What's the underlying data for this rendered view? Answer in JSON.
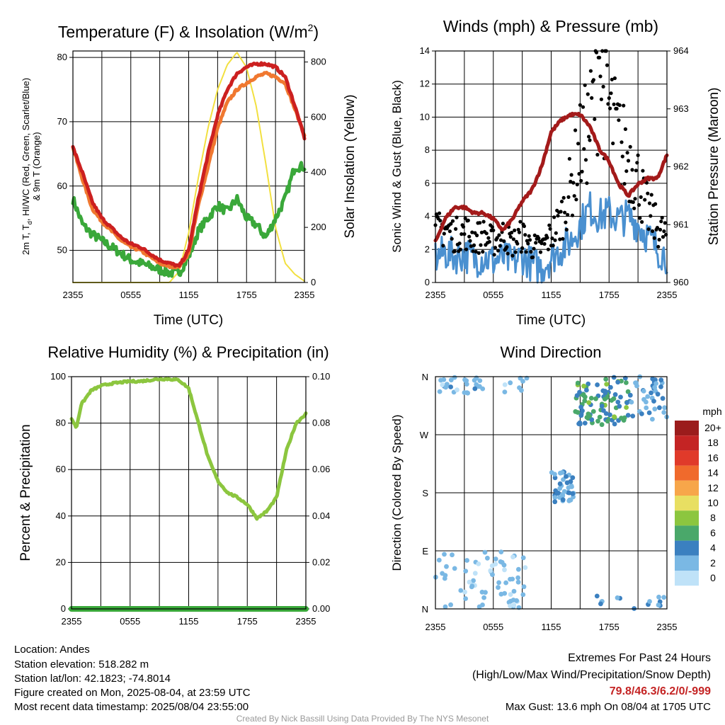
{
  "chart_data": [
    {
      "type": "line",
      "title_prefix": "Temperature (F) & Insolation (W/m",
      "title_sup": "2",
      "title_suffix": ")",
      "xlabel": "Time (UTC)",
      "ylabel_left_line1": "2m T, T",
      "ylabel_left_sub": "d",
      "ylabel_left_line1b": ", HI/WC (Red, Green, Scarlet/Blue)",
      "ylabel_left_line2": "& 9m T (Orange)",
      "ylabel_right": "Solar Insolation (Yellow)",
      "x_ticks": [
        "2355",
        "0555",
        "1155",
        "1755",
        "2355"
      ],
      "y_left_ticks": [
        "50",
        "60",
        "70",
        "80"
      ],
      "y_left_range": [
        45,
        81
      ],
      "y_right_ticks": [
        "0",
        "200",
        "400",
        "600",
        "800"
      ],
      "y_right_range": [
        0,
        840
      ],
      "x_range_hours": [
        0,
        24
      ],
      "series": [
        {
          "name": "2m T",
          "color": "#cc2020",
          "axis": "left",
          "x": [
            0,
            1,
            2,
            3,
            4,
            5,
            6,
            7,
            8,
            9,
            10,
            11,
            12,
            13,
            14,
            15,
            16,
            17,
            18,
            19,
            20,
            21,
            22,
            23,
            24
          ],
          "values": [
            66,
            62,
            57.5,
            55,
            53.5,
            52,
            51,
            50.5,
            49.5,
            48.5,
            48,
            47.5,
            50,
            58,
            65,
            71,
            75,
            77.5,
            78.5,
            79,
            79,
            78.5,
            77,
            72.5,
            67.5
          ]
        },
        {
          "name": "9m T",
          "color": "#f07830",
          "axis": "left",
          "x": [
            0,
            1,
            2,
            3,
            4,
            5,
            6,
            7,
            8,
            9,
            10,
            11,
            12,
            13,
            14,
            15,
            16,
            17,
            18,
            19,
            20,
            21,
            22,
            23,
            24
          ],
          "values": [
            66,
            61,
            56.5,
            54.5,
            53,
            51.5,
            50.5,
            50,
            49,
            48,
            47.5,
            47.5,
            49.5,
            57,
            63,
            69,
            73,
            75,
            76,
            77,
            77.5,
            77,
            76,
            72,
            68
          ]
        },
        {
          "name": "Td",
          "color": "#3aa83a",
          "axis": "left",
          "x": [
            0,
            1,
            2,
            3,
            4,
            5,
            6,
            7,
            8,
            9,
            10,
            11,
            12,
            13,
            14,
            15,
            16,
            17,
            18,
            19,
            20,
            21,
            22,
            23,
            24
          ],
          "values": [
            58,
            54,
            52.5,
            51.5,
            50.5,
            49.5,
            48.5,
            48,
            47.5,
            47,
            46.5,
            46.5,
            49,
            53,
            55,
            57,
            56,
            58,
            55,
            54,
            52,
            55,
            58,
            63,
            63
          ]
        },
        {
          "name": "Solar Insolation",
          "color": "#f2e040",
          "axis": "right",
          "x": [
            0,
            1,
            2,
            3,
            4,
            5,
            6,
            7,
            8,
            9,
            10,
            11,
            12,
            13,
            14,
            15,
            16,
            17,
            18,
            19,
            20,
            21,
            22,
            23,
            24
          ],
          "values": [
            0,
            0,
            0,
            0,
            0,
            0,
            0,
            0,
            0,
            0,
            0,
            40,
            180,
            380,
            560,
            700,
            790,
            835,
            780,
            640,
            430,
            200,
            70,
            30,
            5
          ]
        }
      ]
    },
    {
      "type": "line",
      "title": "Winds (mph) & Pressure (mb)",
      "xlabel": "Time (UTC)",
      "ylabel_left": "Sonic Wind & Gust (Blue, Black)",
      "ylabel_right": "Station Pressure (Maroon)",
      "x_ticks": [
        "2355",
        "0555",
        "1155",
        "1755",
        "2355"
      ],
      "y_left_ticks": [
        "0",
        "2",
        "4",
        "6",
        "8",
        "10",
        "12",
        "14"
      ],
      "y_left_range": [
        0,
        14
      ],
      "y_right_ticks": [
        "960",
        "961",
        "962",
        "963",
        "964"
      ],
      "y_right_range": [
        960,
        964
      ],
      "x_range_hours": [
        0,
        24
      ],
      "series": [
        {
          "name": "Sonic Wind",
          "color": "#4a90d0",
          "axis": "left",
          "x": [
            0,
            1,
            2,
            3,
            4,
            5,
            6,
            7,
            8,
            9,
            10,
            11,
            12,
            13,
            14,
            15,
            16,
            17,
            18,
            19,
            20,
            21,
            22,
            23,
            24
          ],
          "values": [
            1.5,
            1.8,
            1.6,
            1.7,
            1.4,
            1.5,
            1.3,
            1.5,
            1.2,
            1.6,
            1.1,
            0.9,
            1.5,
            2,
            2.5,
            3.5,
            4.5,
            4,
            4.2,
            3.8,
            4,
            3.5,
            2.8,
            2,
            1.6
          ]
        },
        {
          "name": "Gust",
          "color": "#000000",
          "axis": "left",
          "x": [
            0,
            1,
            2,
            3,
            4,
            5,
            6,
            7,
            8,
            9,
            10,
            11,
            12,
            13,
            14,
            15,
            16,
            17,
            18,
            19,
            20,
            21,
            22,
            23,
            24
          ],
          "values": [
            3.2,
            3.5,
            3,
            3.3,
            2.8,
            3,
            2.6,
            3,
            2.5,
            3,
            2.3,
            2.2,
            3,
            4,
            6,
            8.5,
            10,
            13.6,
            11,
            9,
            8,
            6.5,
            4.5,
            3.5,
            3
          ]
        },
        {
          "name": "Station Pressure",
          "color": "#a31a1a",
          "axis": "right",
          "x": [
            0,
            1,
            2,
            3,
            4,
            5,
            6,
            7,
            8,
            9,
            10,
            11,
            12,
            13,
            14,
            15,
            16,
            17,
            18,
            19,
            20,
            21,
            22,
            23,
            24
          ],
          "values": [
            960.7,
            961.1,
            961.3,
            961.3,
            961.2,
            961.2,
            961.1,
            960.9,
            961.1,
            961.4,
            961.6,
            962,
            962.6,
            962.8,
            962.9,
            962.9,
            962.7,
            962.3,
            962.1,
            961.7,
            961.5,
            961.7,
            961.8,
            961.8,
            962.2
          ]
        }
      ]
    },
    {
      "type": "line",
      "title": "Relative Humidity (%) & Precipitation (in)",
      "ylabel_left": "Percent & Precipitation",
      "x_ticks": [
        "2355",
        "0555",
        "1155",
        "1755",
        "2355"
      ],
      "y_left_ticks": [
        "0",
        "20",
        "40",
        "60",
        "80",
        "100"
      ],
      "y_left_range": [
        0,
        100
      ],
      "y_right_ticks": [
        "0.00",
        "0.02",
        "0.04",
        "0.06",
        "0.08",
        "0.10"
      ],
      "y_right_range": [
        0,
        0.1
      ],
      "x_range_hours": [
        0,
        24
      ],
      "series": [
        {
          "name": "Relative Humidity",
          "color": "#8cc63f",
          "axis": "left",
          "x": [
            0,
            0.5,
            1,
            2,
            3,
            4,
            5,
            6,
            7,
            8,
            9,
            10,
            11,
            12,
            13,
            14,
            15,
            16,
            17,
            18,
            19,
            20,
            21,
            22,
            23,
            24
          ],
          "values": [
            82,
            78,
            88,
            94,
            96,
            97,
            97.5,
            98,
            98,
            98.5,
            99,
            99,
            98.5,
            95,
            80,
            65,
            55,
            50,
            48,
            45,
            39,
            42,
            48,
            68,
            80,
            84
          ]
        },
        {
          "name": "Precipitation",
          "color": "#3aa83a",
          "axis": "right",
          "x": [
            0,
            24
          ],
          "values": [
            0,
            0
          ]
        }
      ]
    },
    {
      "type": "scatter",
      "title": "Wind Direction",
      "ylabel": "Direction (Colored By Speed)",
      "x_ticks": [
        "2355",
        "0555",
        "1155",
        "1755",
        "2355"
      ],
      "y_ticks": [
        "N",
        "E",
        "S",
        "W",
        "N"
      ],
      "y_range_degrees": [
        0,
        360
      ],
      "x_range_hours": [
        0,
        24
      ],
      "legend_title": "mph",
      "legend_placement": "right",
      "legend_labels": [
        "20+",
        "18",
        "16",
        "14",
        "12",
        "10",
        "8",
        "6",
        "4",
        "2",
        "0"
      ],
      "legend_colors": [
        "#9b1c1c",
        "#c42424",
        "#e03a2a",
        "#f06a2c",
        "#f7a64a",
        "#e8df62",
        "#8cc63f",
        "#4aa86a",
        "#3b80c0",
        "#7ab8e4",
        "#bfe2f8"
      ]
    }
  ],
  "footer": {
    "location": "Location: Andes",
    "elevation": "Station elevation: 518.282 m",
    "latlon": "Station lat/lon: 42.1823; -74.8014",
    "created": "Figure created on Mon, 2025-08-04, at 23:59 UTC",
    "recent": "Most recent data timestamp: 2025/08/04 23:55:00",
    "extremes_title": "Extremes For Past 24 Hours",
    "extremes_sub": "(High/Low/Max Wind/Precipitation/Snow Depth)",
    "extremes_values": "79.8/46.3/6.2/0/-999",
    "max_gust": "Max Gust: 13.6 mph On 08/04 at 1705 UTC",
    "credit": "Created By Nick Bassill Using Data Provided By The NYS Mesonet"
  }
}
